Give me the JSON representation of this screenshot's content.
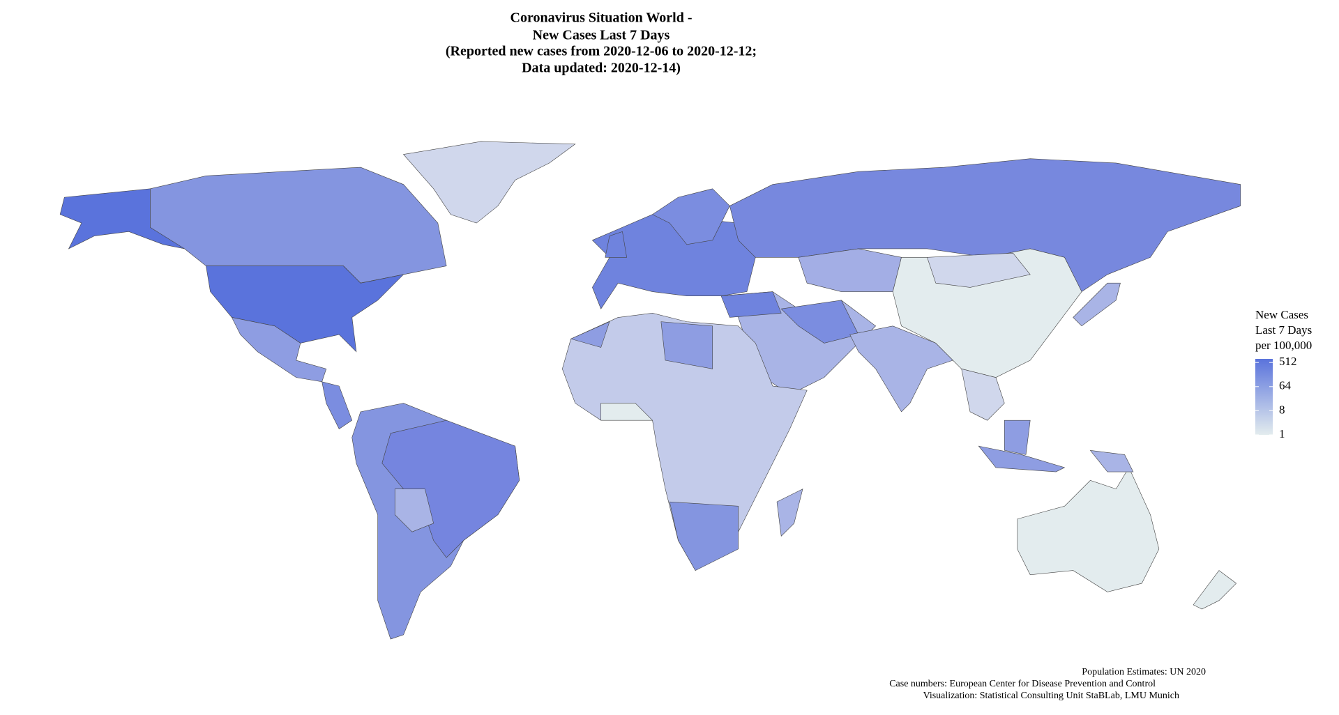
{
  "title": [
    "Coronavirus Situation World -",
    "New Cases Last 7 Days",
    "(Reported new cases from 2020-12-06 to 2020-12-12;",
    "Data updated: 2020-12-14)"
  ],
  "legend": {
    "title": [
      "New Cases",
      "Last 7 Days",
      "per 100,000"
    ],
    "ticks": [
      512,
      64,
      8,
      1
    ],
    "lim": [
      1,
      700
    ],
    "log_scale": true,
    "colors": [
      "#e3ecee",
      "#5a73dc"
    ]
  },
  "credits": [
    "Population Estimates: UN 2020",
    "Case numbers: European Center for Disease Prevention and Control",
    "Visualization: Statistical Consulting Unit StaBLab, LMU Munich"
  ]
}
